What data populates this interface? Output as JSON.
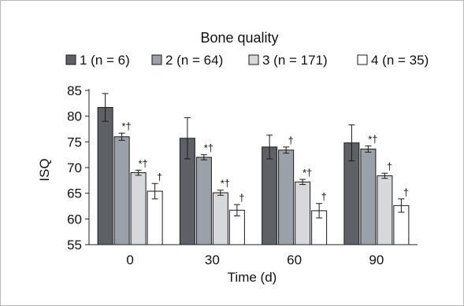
{
  "chart_data": {
    "type": "bar",
    "title": "Bone quality",
    "xlabel": "Time (d)",
    "ylabel": "ISQ",
    "ylim": [
      55,
      85
    ],
    "yticks": [
      55,
      60,
      65,
      70,
      75,
      80,
      85
    ],
    "categories": [
      "0",
      "30",
      "60",
      "90"
    ],
    "series": [
      {
        "name": "1 (n = 6)",
        "color": "#5d6166",
        "values": [
          81.7,
          75.7,
          74.0,
          74.8
        ],
        "errors": [
          2.7,
          4.0,
          2.3,
          3.5
        ],
        "markers": [
          "",
          "",
          "",
          ""
        ]
      },
      {
        "name": "2 (n = 64)",
        "color": "#9aa1a8",
        "values": [
          76.0,
          72.0,
          73.4,
          73.6
        ],
        "errors": [
          0.7,
          0.5,
          0.6,
          0.6
        ],
        "markers": [
          "*†",
          "*†",
          "†",
          "*†"
        ]
      },
      {
        "name": "3 (n = 171)",
        "color": "#d6d8db",
        "values": [
          69.0,
          65.1,
          67.2,
          68.4
        ],
        "errors": [
          0.5,
          0.5,
          0.5,
          0.5
        ],
        "markers": [
          "*†",
          "*†",
          "*†",
          "†"
        ]
      },
      {
        "name": "4 (n = 35)",
        "color": "#ffffff",
        "values": [
          65.4,
          61.7,
          61.6,
          62.6
        ],
        "errors": [
          1.5,
          1.1,
          1.4,
          1.3
        ],
        "markers": [
          "†",
          "†",
          "†",
          "†"
        ]
      }
    ]
  }
}
